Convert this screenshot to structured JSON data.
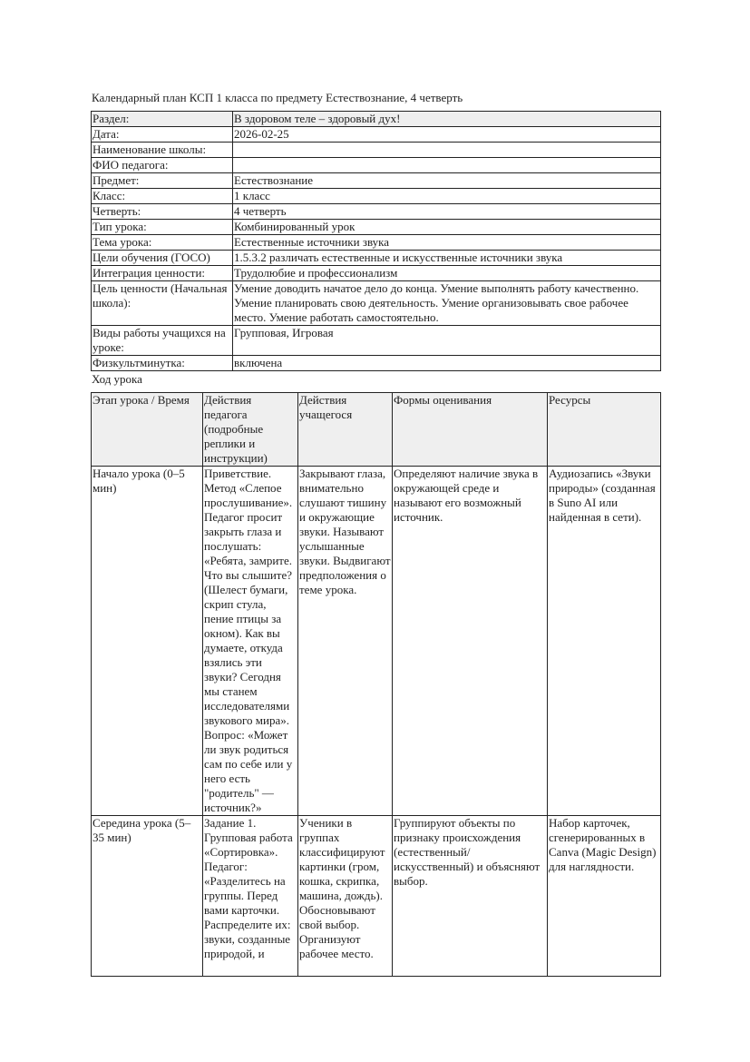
{
  "title": "Календарный план КСП 1 класса по предмету Естествознание, 4 четверть",
  "info": [
    {
      "label": "Раздел:",
      "value": "В здоровом теле – здоровый дух!"
    },
    {
      "label": "Дата:",
      "value": "2026-02-25"
    },
    {
      "label": "Наименование школы:",
      "value": ""
    },
    {
      "label": "ФИО педагога:",
      "value": ""
    },
    {
      "label": "Предмет:",
      "value": "Естествознание"
    },
    {
      "label": "Класс:",
      "value": "1 класс"
    },
    {
      "label": "Четверть:",
      "value": "4 четверть"
    },
    {
      "label": "Тип урока:",
      "value": "Комбинированный урок"
    },
    {
      "label": "Тема урока:",
      "value": "Естественные источники звука"
    },
    {
      "label": "Цели обучения (ГОСО)",
      "value": "1.5.3.2 различать естественные и искусственные источники звука"
    },
    {
      "label": "Интеграция ценности:",
      "value": "Трудолюбие и профессионализм"
    },
    {
      "label": "Цель ценности (Начальная школа):",
      "value": "Умение доводить начатое дело до конца. Умение выполнять работу качественно. Умение планировать свою деятельность. Умение организовывать свое рабочее место. Умение работать самостоятельно."
    },
    {
      "label": "Виды работы учащихся на уроке:",
      "value": "Групповая, Игровая"
    },
    {
      "label": "Физкультминутка:",
      "value": "включена"
    }
  ],
  "caption": "Ход урока",
  "plan": {
    "headers": [
      "Этап урока / Время",
      "Действия педагога (подробные реплики и инструкции)",
      "Действия учащегося",
      "Формы оценивания",
      "Ресурсы"
    ],
    "rows": [
      [
        "Начало урока (0–5 мин)",
        "Приветствие. Метод «Слепое прослушивание». Педагог просит закрыть глаза и послушать: «Ребята, замрите. Что вы слышите? (Шелест бумаги, скрип стула, пение птицы за окном). Как вы думаете, откуда взялись эти звуки? Сегодня мы станем исследователями звукового мира». Вопрос: «Может ли звук родиться сам по себе или у него есть \"родитель\" — источник?»",
        "Закрывают глаза, внимательно слушают тишину и окружающие звуки. Называют услышанные звуки. Выдвигают предположения о теме урока.",
        "Определяют наличие звука в окружающей среде и называют его возможный источник.",
        "Аудиозапись «Звуки природы» (созданная в Suno AI или найденная в сети)."
      ],
      [
        "Середина урока (5–35 мин)",
        "Задание 1. Групповая работа «Сортировка». Педагог: «Разделитесь на группы. Перед вами карточки. Распределите их: звуки, созданные природой, и",
        "Ученики в группах классифицируют картинки (гром, кошка, скрипка, машина, дождь). Обосновывают свой выбор. Организуют рабочее место.",
        "Группируют объекты по признаку происхождения (естественный/искусственный) и объясняют выбор.",
        "Набор карточек, сгенерированных в Canva (Magic Design) для наглядности."
      ]
    ]
  }
}
